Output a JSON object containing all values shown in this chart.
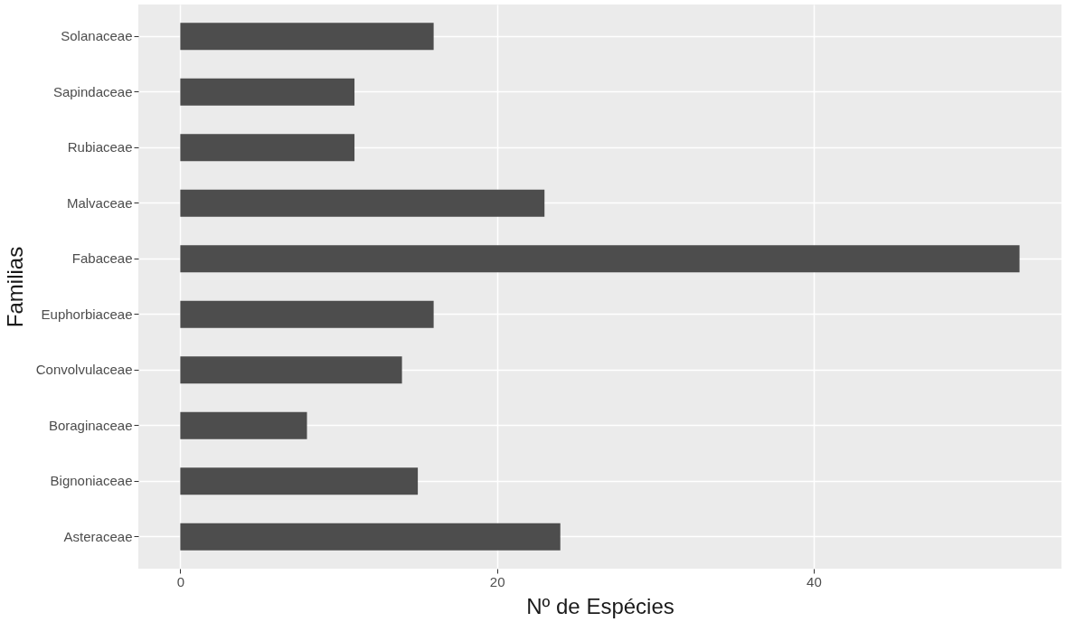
{
  "chart_data": {
    "type": "bar",
    "orientation": "horizontal",
    "xlabel": "Nº de Espécies",
    "ylabel": "Familias",
    "categories": [
      "Solanaceae",
      "Sapindaceae",
      "Rubiaceae",
      "Malvaceae",
      "Fabaceae",
      "Euphorbiaceae",
      "Convolvulaceae",
      "Boraginaceae",
      "Bignoniaceae",
      "Asteraceae"
    ],
    "values": [
      16,
      11,
      11,
      23,
      53,
      16,
      14,
      8,
      15,
      24
    ],
    "color": "#4d4d4d",
    "xlim": [
      -2.65,
      55.65
    ],
    "xticks": [
      0,
      20,
      40
    ],
    "grid": true
  }
}
